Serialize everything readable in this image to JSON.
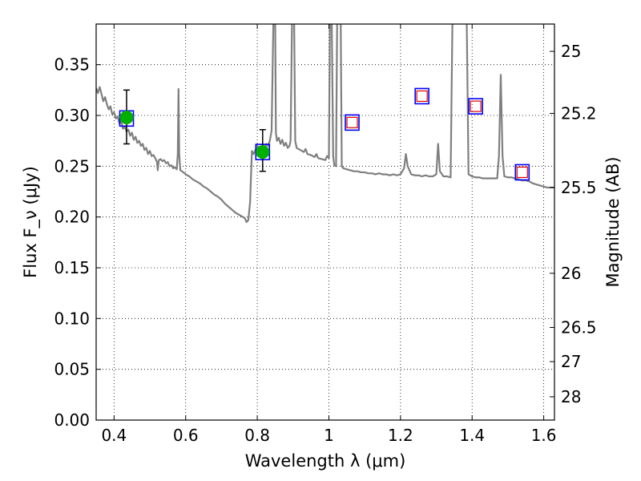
{
  "chart_data": {
    "type": "scatter",
    "title": "",
    "xlabel": "Wavelength λ (μm)",
    "ylabel": "Flux F_ν (μJy)",
    "ylabel_right": "Magnitude (AB)",
    "xlim": [
      0.35,
      1.63
    ],
    "ylim": [
      0.0,
      0.39
    ],
    "grid": true,
    "x_ticks": [
      {
        "value": 0.4,
        "label": "0.4"
      },
      {
        "value": 0.6,
        "label": "0.6"
      },
      {
        "value": 0.8,
        "label": "0.8"
      },
      {
        "value": 1.0,
        "label": "1"
      },
      {
        "value": 1.2,
        "label": "1.2"
      },
      {
        "value": 1.4,
        "label": "1.4"
      },
      {
        "value": 1.6,
        "label": "1.6"
      }
    ],
    "y_ticks": [
      {
        "value": 0.0,
        "label": "0.00"
      },
      {
        "value": 0.05,
        "label": "0.05"
      },
      {
        "value": 0.1,
        "label": "0.10"
      },
      {
        "value": 0.15,
        "label": "0.15"
      },
      {
        "value": 0.2,
        "label": "0.20"
      },
      {
        "value": 0.25,
        "label": "0.25"
      },
      {
        "value": 0.3,
        "label": "0.30"
      },
      {
        "value": 0.35,
        "label": "0.35"
      }
    ],
    "right_ticks": [
      {
        "mag": 25,
        "label": "25"
      },
      {
        "mag": 25.2,
        "label": "25.2"
      },
      {
        "mag": 25.5,
        "label": "25.5"
      },
      {
        "mag": 26,
        "label": "26"
      },
      {
        "mag": 26.5,
        "label": "26.5"
      },
      {
        "mag": 27,
        "label": "27"
      },
      {
        "mag": 28,
        "label": "28"
      }
    ],
    "colors": {
      "model": "#7f7f7f",
      "detection_fill": "#00b000",
      "filter_box": "#0000ff",
      "model_box": "#e00000",
      "error_bar": "#000000"
    },
    "series": [
      {
        "kind": "model_spectrum",
        "points": [
          [
            0.35,
            0.327
          ],
          [
            0.355,
            0.322
          ],
          [
            0.36,
            0.328
          ],
          [
            0.365,
            0.321
          ],
          [
            0.37,
            0.314
          ],
          [
            0.375,
            0.318
          ],
          [
            0.38,
            0.311
          ],
          [
            0.385,
            0.306
          ],
          [
            0.39,
            0.309
          ],
          [
            0.395,
            0.301
          ],
          [
            0.4,
            0.303
          ],
          [
            0.405,
            0.297
          ],
          [
            0.41,
            0.299
          ],
          [
            0.415,
            0.292
          ],
          [
            0.42,
            0.294
          ],
          [
            0.425,
            0.287
          ],
          [
            0.43,
            0.289
          ],
          [
            0.435,
            0.284
          ],
          [
            0.44,
            0.286
          ],
          [
            0.445,
            0.28
          ],
          [
            0.45,
            0.283
          ],
          [
            0.455,
            0.276
          ],
          [
            0.46,
            0.279
          ],
          [
            0.465,
            0.273
          ],
          [
            0.47,
            0.275
          ],
          [
            0.475,
            0.27
          ],
          [
            0.48,
            0.272
          ],
          [
            0.485,
            0.266
          ],
          [
            0.49,
            0.268
          ],
          [
            0.495,
            0.262
          ],
          [
            0.5,
            0.265
          ],
          [
            0.505,
            0.26
          ],
          [
            0.51,
            0.261
          ],
          [
            0.515,
            0.258
          ],
          [
            0.52,
            0.254
          ],
          [
            0.522,
            0.246
          ],
          [
            0.525,
            0.256
          ],
          [
            0.53,
            0.257
          ],
          [
            0.535,
            0.255
          ],
          [
            0.54,
            0.256
          ],
          [
            0.545,
            0.253
          ],
          [
            0.55,
            0.254
          ],
          [
            0.555,
            0.25
          ],
          [
            0.56,
            0.251
          ],
          [
            0.565,
            0.248
          ],
          [
            0.57,
            0.249
          ],
          [
            0.575,
            0.247
          ],
          [
            0.578,
            0.262
          ],
          [
            0.58,
            0.326
          ],
          [
            0.582,
            0.262
          ],
          [
            0.585,
            0.246
          ],
          [
            0.59,
            0.245
          ],
          [
            0.6,
            0.242
          ],
          [
            0.61,
            0.24
          ],
          [
            0.62,
            0.237
          ],
          [
            0.63,
            0.235
          ],
          [
            0.64,
            0.233
          ],
          [
            0.65,
            0.23
          ],
          [
            0.66,
            0.228
          ],
          [
            0.67,
            0.225
          ],
          [
            0.68,
            0.222
          ],
          [
            0.69,
            0.22
          ],
          [
            0.7,
            0.217
          ],
          [
            0.71,
            0.213
          ],
          [
            0.72,
            0.21
          ],
          [
            0.73,
            0.207
          ],
          [
            0.74,
            0.204
          ],
          [
            0.75,
            0.202
          ],
          [
            0.76,
            0.2
          ],
          [
            0.765,
            0.199
          ],
          [
            0.77,
            0.195
          ],
          [
            0.775,
            0.197
          ],
          [
            0.78,
            0.215
          ],
          [
            0.785,
            0.265
          ],
          [
            0.79,
            0.262
          ],
          [
            0.795,
            0.266
          ],
          [
            0.8,
            0.27
          ],
          [
            0.805,
            0.268
          ],
          [
            0.81,
            0.265
          ],
          [
            0.815,
            0.27
          ],
          [
            0.82,
            0.267
          ],
          [
            0.825,
            0.272
          ],
          [
            0.83,
            0.27
          ],
          [
            0.835,
            0.275
          ],
          [
            0.84,
            0.285
          ],
          [
            0.845,
            0.392
          ],
          [
            0.85,
            0.392
          ],
          [
            0.852,
            0.283
          ],
          [
            0.855,
            0.275
          ],
          [
            0.86,
            0.278
          ],
          [
            0.865,
            0.272
          ],
          [
            0.87,
            0.276
          ],
          [
            0.875,
            0.27
          ],
          [
            0.88,
            0.273
          ],
          [
            0.885,
            0.268
          ],
          [
            0.89,
            0.27
          ],
          [
            0.893,
            0.275
          ],
          [
            0.897,
            0.392
          ],
          [
            0.903,
            0.392
          ],
          [
            0.906,
            0.275
          ],
          [
            0.91,
            0.268
          ],
          [
            0.92,
            0.266
          ],
          [
            0.93,
            0.264
          ],
          [
            0.935,
            0.267
          ],
          [
            0.94,
            0.262
          ],
          [
            0.95,
            0.261
          ],
          [
            0.96,
            0.259
          ],
          [
            0.965,
            0.262
          ],
          [
            0.97,
            0.258
          ],
          [
            0.98,
            0.257
          ],
          [
            0.99,
            0.256
          ],
          [
            0.995,
            0.26
          ],
          [
            1.0,
            0.258
          ],
          [
            1.003,
            0.392
          ],
          [
            1.008,
            0.392
          ],
          [
            1.012,
            0.26
          ],
          [
            1.015,
            0.251
          ],
          [
            1.02,
            0.25
          ],
          [
            1.023,
            0.392
          ],
          [
            1.033,
            0.392
          ],
          [
            1.036,
            0.25
          ],
          [
            1.04,
            0.248
          ],
          [
            1.05,
            0.247
          ],
          [
            1.06,
            0.246
          ],
          [
            1.07,
            0.245
          ],
          [
            1.08,
            0.245
          ],
          [
            1.09,
            0.244
          ],
          [
            1.1,
            0.244
          ],
          [
            1.11,
            0.243
          ],
          [
            1.12,
            0.243
          ],
          [
            1.13,
            0.242
          ],
          [
            1.14,
            0.243
          ],
          [
            1.15,
            0.242
          ],
          [
            1.16,
            0.242
          ],
          [
            1.17,
            0.241
          ],
          [
            1.18,
            0.242
          ],
          [
            1.19,
            0.241
          ],
          [
            1.2,
            0.242
          ],
          [
            1.21,
            0.248
          ],
          [
            1.215,
            0.262
          ],
          [
            1.22,
            0.25
          ],
          [
            1.23,
            0.242
          ],
          [
            1.24,
            0.241
          ],
          [
            1.25,
            0.241
          ],
          [
            1.26,
            0.24
          ],
          [
            1.27,
            0.241
          ],
          [
            1.28,
            0.24
          ],
          [
            1.29,
            0.24
          ],
          [
            1.3,
            0.242
          ],
          [
            1.305,
            0.272
          ],
          [
            1.31,
            0.245
          ],
          [
            1.32,
            0.24
          ],
          [
            1.33,
            0.24
          ],
          [
            1.34,
            0.239
          ],
          [
            1.345,
            0.392
          ],
          [
            1.38,
            0.392
          ],
          [
            1.385,
            0.392
          ],
          [
            1.39,
            0.242
          ],
          [
            1.4,
            0.24
          ],
          [
            1.41,
            0.239
          ],
          [
            1.42,
            0.239
          ],
          [
            1.43,
            0.238
          ],
          [
            1.44,
            0.238
          ],
          [
            1.45,
            0.238
          ],
          [
            1.46,
            0.238
          ],
          [
            1.47,
            0.238
          ],
          [
            1.475,
            0.26
          ],
          [
            1.48,
            0.34
          ],
          [
            1.485,
            0.26
          ],
          [
            1.49,
            0.24
          ],
          [
            1.5,
            0.239
          ],
          [
            1.51,
            0.239
          ],
          [
            1.52,
            0.238
          ],
          [
            1.53,
            0.237
          ],
          [
            1.54,
            0.236
          ],
          [
            1.55,
            0.236
          ],
          [
            1.56,
            0.235
          ],
          [
            1.57,
            0.233
          ],
          [
            1.58,
            0.232
          ],
          [
            1.59,
            0.231
          ],
          [
            1.6,
            0.23
          ],
          [
            1.61,
            0.229
          ],
          [
            1.62,
            0.229
          ],
          [
            1.63,
            0.229
          ]
        ]
      },
      {
        "kind": "detections",
        "points": [
          {
            "x": 0.435,
            "y": 0.298,
            "yerr_low": 0.272,
            "yerr_high": 0.325
          },
          {
            "x": 0.815,
            "y": 0.264,
            "yerr_low": 0.245,
            "yerr_high": 0.286
          }
        ]
      },
      {
        "kind": "synthetic_photometry",
        "points": [
          {
            "x": 0.435,
            "y": 0.297,
            "model_box": false
          },
          {
            "x": 0.815,
            "y": 0.264,
            "model_box": false
          },
          {
            "x": 1.065,
            "y": 0.293,
            "model_box": true
          },
          {
            "x": 1.26,
            "y": 0.319,
            "model_box": true
          },
          {
            "x": 1.41,
            "y": 0.309,
            "model_box": true
          },
          {
            "x": 1.54,
            "y": 0.244,
            "model_box": true
          }
        ]
      }
    ]
  }
}
